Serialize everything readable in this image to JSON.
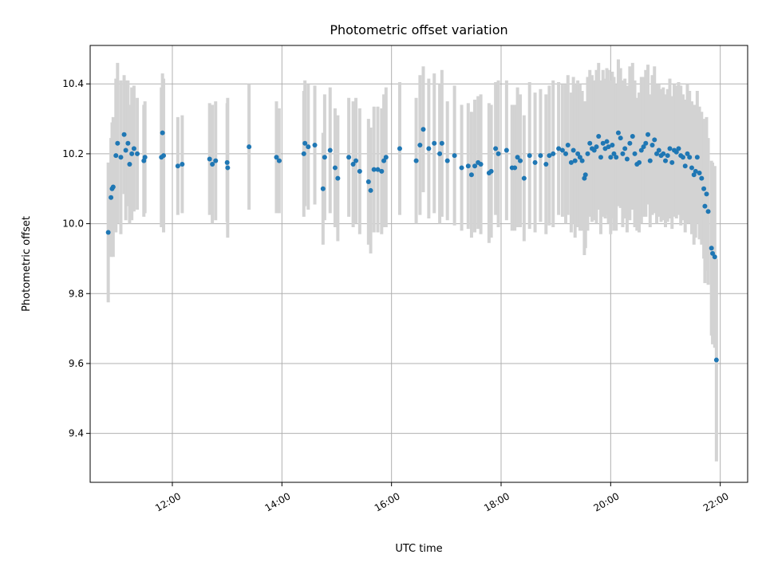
{
  "chart_data": {
    "type": "scatter",
    "title": "Photometric offset variation",
    "xlabel": "UTC time",
    "ylabel": "Photometric offset",
    "x_unit": "hour",
    "xlim": [
      10.5,
      22.5
    ],
    "ylim": [
      9.26,
      10.51
    ],
    "xticks": [
      {
        "value": 12,
        "label": "12:00"
      },
      {
        "value": 14,
        "label": "14:00"
      },
      {
        "value": 16,
        "label": "16:00"
      },
      {
        "value": 18,
        "label": "18:00"
      },
      {
        "value": 20,
        "label": "20:00"
      },
      {
        "value": 22,
        "label": "22:00"
      }
    ],
    "yticks": [
      {
        "value": 9.4,
        "label": "9.4"
      },
      {
        "value": 9.6,
        "label": "9.6"
      },
      {
        "value": 9.8,
        "label": "9.8"
      },
      {
        "value": 10.0,
        "label": "10.0"
      },
      {
        "value": 10.2,
        "label": "10.2"
      },
      {
        "value": 10.4,
        "label": "10.4"
      }
    ],
    "grid": true,
    "series": [
      {
        "marker_color": "#1f77b4",
        "errorbar_color": "#d3d3d3",
        "points": [
          [
            10.83,
            9.975,
            0.2
          ],
          [
            10.88,
            10.075,
            0.17
          ],
          [
            10.9,
            10.1,
            0.19
          ],
          [
            10.92,
            10.105,
            0.2
          ],
          [
            10.97,
            10.195,
            0.22
          ],
          [
            11.0,
            10.23,
            0.23
          ],
          [
            11.06,
            10.19,
            0.22
          ],
          [
            11.12,
            10.255,
            0.17
          ],
          [
            11.15,
            10.21,
            0.2
          ],
          [
            11.19,
            10.23,
            0.18
          ],
          [
            11.22,
            10.17,
            0.17
          ],
          [
            11.26,
            10.2,
            0.19
          ],
          [
            11.3,
            10.215,
            0.18
          ],
          [
            11.36,
            10.2,
            0.16
          ],
          [
            11.48,
            10.18,
            0.16
          ],
          [
            11.5,
            10.19,
            0.16
          ],
          [
            11.8,
            10.19,
            0.2
          ],
          [
            11.82,
            10.26,
            0.17
          ],
          [
            11.84,
            10.195,
            0.22
          ],
          [
            12.1,
            10.165,
            0.14
          ],
          [
            12.18,
            10.17,
            0.14
          ],
          [
            12.68,
            10.185,
            0.16
          ],
          [
            12.73,
            10.17,
            0.17
          ],
          [
            12.79,
            10.18,
            0.17
          ],
          [
            13.0,
            10.175,
            0.17
          ],
          [
            13.01,
            10.16,
            0.2
          ],
          [
            13.4,
            10.22,
            0.18
          ],
          [
            13.9,
            10.19,
            0.16
          ],
          [
            13.95,
            10.18,
            0.15
          ],
          [
            14.4,
            10.2,
            0.18
          ],
          [
            14.42,
            10.23,
            0.18
          ],
          [
            14.48,
            10.22,
            0.18
          ],
          [
            14.6,
            10.225,
            0.17
          ],
          [
            14.75,
            10.1,
            0.16
          ],
          [
            14.78,
            10.19,
            0.18
          ],
          [
            14.88,
            10.21,
            0.18
          ],
          [
            14.97,
            10.16,
            0.17
          ],
          [
            15.02,
            10.13,
            0.18
          ],
          [
            15.22,
            10.19,
            0.17
          ],
          [
            15.3,
            10.17,
            0.18
          ],
          [
            15.35,
            10.18,
            0.18
          ],
          [
            15.42,
            10.15,
            0.18
          ],
          [
            15.58,
            10.12,
            0.18
          ],
          [
            15.62,
            10.095,
            0.18
          ],
          [
            15.68,
            10.155,
            0.18
          ],
          [
            15.75,
            10.155,
            0.18
          ],
          [
            15.82,
            10.15,
            0.18
          ],
          [
            15.86,
            10.18,
            0.19
          ],
          [
            15.9,
            10.19,
            0.2
          ],
          [
            16.15,
            10.215,
            0.19
          ],
          [
            16.45,
            10.18,
            0.18
          ],
          [
            16.52,
            10.225,
            0.2
          ],
          [
            16.58,
            10.27,
            0.18
          ],
          [
            16.68,
            10.215,
            0.2
          ],
          [
            16.78,
            10.23,
            0.2
          ],
          [
            16.88,
            10.2,
            0.2
          ],
          [
            16.92,
            10.23,
            0.21
          ],
          [
            17.02,
            10.18,
            0.17
          ],
          [
            17.15,
            10.195,
            0.2
          ],
          [
            17.28,
            10.16,
            0.18
          ],
          [
            17.4,
            10.165,
            0.18
          ],
          [
            17.46,
            10.14,
            0.18
          ],
          [
            17.52,
            10.165,
            0.19
          ],
          [
            17.58,
            10.175,
            0.19
          ],
          [
            17.63,
            10.17,
            0.2
          ],
          [
            17.78,
            10.145,
            0.2
          ],
          [
            17.82,
            10.15,
            0.19
          ],
          [
            17.9,
            10.215,
            0.19
          ],
          [
            17.95,
            10.2,
            0.21
          ],
          [
            18.1,
            10.21,
            0.2
          ],
          [
            18.2,
            10.16,
            0.18
          ],
          [
            18.25,
            10.16,
            0.18
          ],
          [
            18.3,
            10.19,
            0.2
          ],
          [
            18.35,
            10.18,
            0.19
          ],
          [
            18.42,
            10.13,
            0.18
          ],
          [
            18.52,
            10.195,
            0.21
          ],
          [
            18.62,
            10.175,
            0.2
          ],
          [
            18.72,
            10.195,
            0.19
          ],
          [
            18.82,
            10.17,
            0.2
          ],
          [
            18.88,
            10.195,
            0.2
          ],
          [
            18.95,
            10.2,
            0.21
          ],
          [
            19.05,
            10.215,
            0.19
          ],
          [
            19.12,
            10.21,
            0.19
          ],
          [
            19.18,
            10.2,
            0.2
          ],
          [
            19.22,
            10.225,
            0.2
          ],
          [
            19.28,
            10.175,
            0.2
          ],
          [
            19.32,
            10.21,
            0.21
          ],
          [
            19.35,
            10.18,
            0.22
          ],
          [
            19.4,
            10.2,
            0.21
          ],
          [
            19.44,
            10.19,
            0.21
          ],
          [
            19.48,
            10.18,
            0.2
          ],
          [
            19.52,
            10.13,
            0.22
          ],
          [
            19.54,
            10.14,
            0.21
          ],
          [
            19.58,
            10.2,
            0.22
          ],
          [
            19.62,
            10.23,
            0.21
          ],
          [
            19.66,
            10.215,
            0.21
          ],
          [
            19.7,
            10.21,
            0.2
          ],
          [
            19.74,
            10.22,
            0.22
          ],
          [
            19.78,
            10.25,
            0.21
          ],
          [
            19.82,
            10.19,
            0.22
          ],
          [
            19.86,
            10.23,
            0.21
          ],
          [
            19.9,
            10.215,
            0.2
          ],
          [
            19.93,
            10.235,
            0.21
          ],
          [
            19.96,
            10.22,
            0.22
          ],
          [
            20.0,
            10.19,
            0.22
          ],
          [
            20.03,
            10.225,
            0.21
          ],
          [
            20.06,
            10.2,
            0.22
          ],
          [
            20.1,
            10.19,
            0.21
          ],
          [
            20.14,
            10.26,
            0.21
          ],
          [
            20.18,
            10.245,
            0.2
          ],
          [
            20.22,
            10.2,
            0.21
          ],
          [
            20.26,
            10.215,
            0.2
          ],
          [
            20.3,
            10.185,
            0.21
          ],
          [
            20.35,
            10.23,
            0.22
          ],
          [
            20.4,
            10.25,
            0.21
          ],
          [
            20.44,
            10.2,
            0.21
          ],
          [
            20.48,
            10.17,
            0.19
          ],
          [
            20.52,
            10.175,
            0.2
          ],
          [
            20.56,
            10.21,
            0.21
          ],
          [
            20.6,
            10.22,
            0.2
          ],
          [
            20.64,
            10.23,
            0.21
          ],
          [
            20.68,
            10.255,
            0.2
          ],
          [
            20.72,
            10.18,
            0.19
          ],
          [
            20.76,
            10.225,
            0.2
          ],
          [
            20.8,
            10.24,
            0.21
          ],
          [
            20.84,
            10.2,
            0.2
          ],
          [
            20.88,
            10.21,
            0.19
          ],
          [
            20.92,
            10.195,
            0.19
          ],
          [
            20.96,
            10.2,
            0.19
          ],
          [
            21.0,
            10.18,
            0.19
          ],
          [
            21.04,
            10.195,
            0.19
          ],
          [
            21.08,
            10.215,
            0.2
          ],
          [
            21.12,
            10.175,
            0.19
          ],
          [
            21.16,
            10.21,
            0.19
          ],
          [
            21.2,
            10.205,
            0.19
          ],
          [
            21.24,
            10.215,
            0.19
          ],
          [
            21.28,
            10.195,
            0.2
          ],
          [
            21.32,
            10.19,
            0.18
          ],
          [
            21.36,
            10.165,
            0.19
          ],
          [
            21.4,
            10.2,
            0.2
          ],
          [
            21.44,
            10.19,
            0.19
          ],
          [
            21.48,
            10.16,
            0.19
          ],
          [
            21.52,
            10.14,
            0.2
          ],
          [
            21.55,
            10.15,
            0.19
          ],
          [
            21.58,
            10.19,
            0.19
          ],
          [
            21.62,
            10.145,
            0.19
          ],
          [
            21.66,
            10.13,
            0.19
          ],
          [
            21.7,
            10.1,
            0.2
          ],
          [
            21.72,
            10.05,
            0.22
          ],
          [
            21.75,
            10.085,
            0.22
          ],
          [
            21.78,
            10.035,
            0.21
          ],
          [
            21.84,
            9.93,
            0.25
          ],
          [
            21.86,
            9.915,
            0.26
          ],
          [
            21.9,
            9.905,
            0.26
          ],
          [
            21.93,
            9.61,
            0.29
          ]
        ]
      }
    ]
  }
}
